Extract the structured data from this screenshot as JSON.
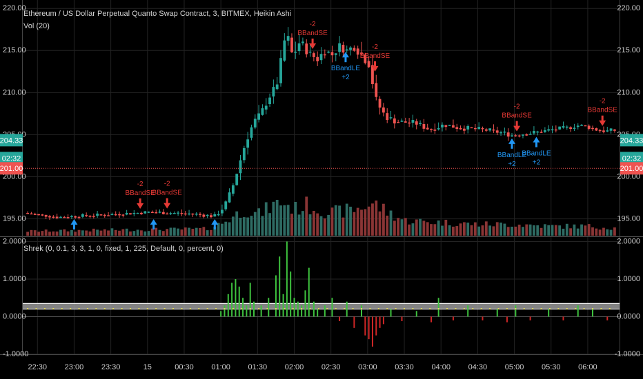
{
  "header": {
    "title": "Ethereum / US Dollar Perpetual Quanto Swap Contract, 3, BITMEX, Heikin Ashi",
    "volume_label": "Vol (20)",
    "indicator_label": "Shrek (0, 0.1, 3, 3, 1, 0, fixed, 1, 225, Default, 0, percent, 0)"
  },
  "price_badges": [
    {
      "text": "204.33",
      "color": "#26a69a"
    },
    {
      "text": "02:32",
      "color": "#26a69a"
    },
    {
      "text": "201.00",
      "color": "#ef5350"
    }
  ],
  "colors": {
    "up": "#26a69a",
    "down": "#ef5350",
    "vol_up": "#2e6b63",
    "vol_down": "#8a3535",
    "long_signal": "#2196f3",
    "short_signal": "#e53935",
    "hist_pos": "#3ec23e",
    "hist_neg": "#d02626",
    "grid": "#232323"
  },
  "chart_data": [
    {
      "type": "candlestick",
      "style": "Heikin Ashi",
      "y_ticks": [
        "195.00",
        "200.00",
        "205.00",
        "210.00",
        "215.00",
        "220.00"
      ],
      "ylim": [
        193,
        221
      ],
      "x_ticks": [
        "22:30",
        "23:00",
        "23:30",
        "15",
        "00:30",
        "01:00",
        "01:30",
        "02:00",
        "02:30",
        "03:00",
        "03:30",
        "04:00",
        "04:30",
        "05:00",
        "05:30",
        "06:00"
      ],
      "x_tick_times": [
        0,
        30,
        60,
        90,
        120,
        150,
        180,
        210,
        240,
        270,
        300,
        330,
        360,
        390,
        420,
        450
      ],
      "bar_interval_minutes": 3,
      "horizontal_line": 201.0,
      "price_path": [
        [
          -8,
          195.7
        ],
        [
          20,
          195.2
        ],
        [
          60,
          195.5
        ],
        [
          95,
          195.8
        ],
        [
          130,
          195.6
        ],
        [
          148,
          195.3
        ],
        [
          156,
          196.5
        ],
        [
          162,
          198.5
        ],
        [
          168,
          201.5
        ],
        [
          174,
          204.5
        ],
        [
          180,
          206.5
        ],
        [
          186,
          207.5
        ],
        [
          192,
          209.5
        ],
        [
          198,
          210.5
        ],
        [
          202,
          213.5
        ],
        [
          206,
          217.0
        ],
        [
          209,
          216.0
        ],
        [
          212,
          214.0
        ],
        [
          216,
          216.0
        ],
        [
          221,
          215.5
        ],
        [
          226,
          214.5
        ],
        [
          232,
          214.0
        ],
        [
          238,
          215.0
        ],
        [
          244,
          214.5
        ],
        [
          250,
          215.5
        ],
        [
          256,
          215.0
        ],
        [
          262,
          215.5
        ],
        [
          268,
          214.5
        ],
        [
          274,
          213.5
        ],
        [
          280,
          209.0
        ],
        [
          286,
          207.5
        ],
        [
          292,
          206.8
        ],
        [
          300,
          206.5
        ],
        [
          312,
          206.4
        ],
        [
          324,
          205.6
        ],
        [
          336,
          206.2
        ],
        [
          348,
          205.8
        ],
        [
          360,
          205.7
        ],
        [
          372,
          205.5
        ],
        [
          384,
          205.2
        ],
        [
          392,
          204.9
        ],
        [
          400,
          205.1
        ],
        [
          412,
          205.3
        ],
        [
          424,
          205.6
        ],
        [
          436,
          205.8
        ],
        [
          444,
          206.1
        ],
        [
          452,
          206.0
        ],
        [
          460,
          205.6
        ],
        [
          468,
          205.4
        ],
        [
          472,
          205.5
        ]
      ],
      "volume_profile": [
        [
          -8,
          0.12
        ],
        [
          60,
          0.15
        ],
        [
          140,
          0.18
        ],
        [
          152,
          0.35
        ],
        [
          160,
          0.5
        ],
        [
          170,
          0.7
        ],
        [
          180,
          0.55
        ],
        [
          190,
          0.75
        ],
        [
          200,
          0.9
        ],
        [
          210,
          0.7
        ],
        [
          220,
          0.8
        ],
        [
          240,
          0.6
        ],
        [
          260,
          0.7
        ],
        [
          275,
          0.85
        ],
        [
          285,
          0.65
        ],
        [
          300,
          0.4
        ],
        [
          330,
          0.35
        ],
        [
          360,
          0.3
        ],
        [
          390,
          0.3
        ],
        [
          420,
          0.25
        ],
        [
          450,
          0.25
        ],
        [
          472,
          0.2
        ]
      ],
      "signals": [
        {
          "t": 84,
          "side": "short",
          "label": "BBandSE",
          "qty": "-2"
        },
        {
          "t": 106,
          "side": "short",
          "label": "BBandSE",
          "qty": "-2"
        },
        {
          "t": 225,
          "side": "short",
          "label": "BBandSE",
          "qty": "-2"
        },
        {
          "t": 276,
          "side": "short",
          "label": "BBandSE",
          "qty": "-2"
        },
        {
          "t": 392,
          "side": "short",
          "label": "BBandSE",
          "qty": "-2"
        },
        {
          "t": 462,
          "side": "short",
          "label": "BBandSE",
          "qty": "-2"
        },
        {
          "t": 252,
          "side": "long",
          "label": "BBandLE",
          "qty": "+2"
        },
        {
          "t": 388,
          "side": "long",
          "label": "BBandLE",
          "qty": "+2"
        },
        {
          "t": 408,
          "side": "long",
          "label": "BBandLE",
          "qty": "+2"
        },
        {
          "t": 30,
          "side": "long",
          "label": "",
          "qty": ""
        },
        {
          "t": 95,
          "side": "long",
          "label": "",
          "qty": ""
        },
        {
          "t": 145,
          "side": "long",
          "label": "",
          "qty": ""
        }
      ]
    },
    {
      "type": "histogram",
      "y_ticks": [
        "-1.0000",
        "0.0000",
        "1.0000",
        "2.0000"
      ],
      "ylim": [
        -1.0,
        2.1
      ],
      "band": [
        0.2,
        0.35
      ],
      "bars": [
        [
          150,
          0.15
        ],
        [
          153,
          0.3
        ],
        [
          156,
          0.6
        ],
        [
          159,
          0.9
        ],
        [
          162,
          1.0
        ],
        [
          165,
          0.8
        ],
        [
          168,
          0.5
        ],
        [
          171,
          0.3
        ],
        [
          174,
          0.9
        ],
        [
          177,
          0.4
        ],
        [
          183,
          0.3
        ],
        [
          189,
          0.5
        ],
        [
          195,
          1.1
        ],
        [
          198,
          1.6
        ],
        [
          201,
          0.6
        ],
        [
          204,
          2.0
        ],
        [
          207,
          1.2
        ],
        [
          210,
          0.5
        ],
        [
          213,
          0.4
        ],
        [
          216,
          0.3
        ],
        [
          219,
          0.7
        ],
        [
          222,
          1.3
        ],
        [
          226,
          0.4
        ],
        [
          229,
          0.2
        ],
        [
          235,
          0.3
        ],
        [
          241,
          0.5
        ],
        [
          247,
          -0.12
        ],
        [
          253,
          0.4
        ],
        [
          259,
          -0.3
        ],
        [
          265,
          0.3
        ],
        [
          268,
          -0.5
        ],
        [
          271,
          -0.6
        ],
        [
          274,
          -0.8
        ],
        [
          277,
          -0.5
        ],
        [
          280,
          -0.3
        ],
        [
          283,
          -0.2
        ],
        [
          289,
          0.2
        ],
        [
          298,
          -0.12
        ],
        [
          310,
          0.15
        ],
        [
          322,
          -0.15
        ],
        [
          328,
          0.5
        ],
        [
          340,
          -0.1
        ],
        [
          352,
          0.3
        ],
        [
          364,
          -0.1
        ],
        [
          376,
          0.2
        ],
        [
          384,
          -0.15
        ],
        [
          391,
          0.3
        ],
        [
          403,
          -0.1
        ],
        [
          418,
          0.2
        ],
        [
          430,
          -0.1
        ],
        [
          442,
          0.3
        ],
        [
          454,
          0.2
        ],
        [
          466,
          -0.1
        ]
      ]
    }
  ]
}
